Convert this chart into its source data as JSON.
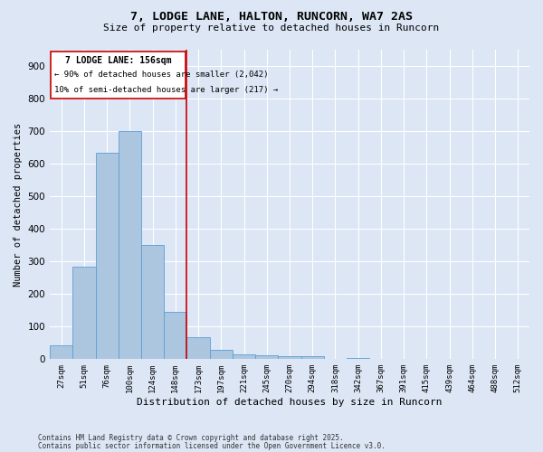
{
  "title": "7, LODGE LANE, HALTON, RUNCORN, WA7 2AS",
  "subtitle": "Size of property relative to detached houses in Runcorn",
  "xlabel": "Distribution of detached houses by size in Runcorn",
  "ylabel": "Number of detached properties",
  "categories": [
    "27sqm",
    "51sqm",
    "76sqm",
    "100sqm",
    "124sqm",
    "148sqm",
    "173sqm",
    "197sqm",
    "221sqm",
    "245sqm",
    "270sqm",
    "294sqm",
    "318sqm",
    "342sqm",
    "367sqm",
    "391sqm",
    "415sqm",
    "439sqm",
    "464sqm",
    "488sqm",
    "512sqm"
  ],
  "values": [
    42,
    283,
    633,
    700,
    350,
    145,
    67,
    28,
    15,
    11,
    10,
    8,
    0,
    5,
    0,
    0,
    0,
    0,
    0,
    0,
    0
  ],
  "bar_color": "#adc6e0",
  "bar_edge_color": "#5a9fd4",
  "fig_bg_color": "#dce6f5",
  "ax_bg_color": "#dce6f5",
  "grid_color": "#ffffff",
  "vline_color": "#cc0000",
  "vline_x": 5.5,
  "annotation_title": "7 LODGE LANE: 156sqm",
  "annotation_line1": "← 90% of detached houses are smaller (2,042)",
  "annotation_line2": "10% of semi-detached houses are larger (217) →",
  "annotation_box_color": "#cc0000",
  "ylim": [
    0,
    950
  ],
  "yticks": [
    0,
    100,
    200,
    300,
    400,
    500,
    600,
    700,
    800,
    900
  ],
  "footer1": "Contains HM Land Registry data © Crown copyright and database right 2025.",
  "footer2": "Contains public sector information licensed under the Open Government Licence v3.0."
}
